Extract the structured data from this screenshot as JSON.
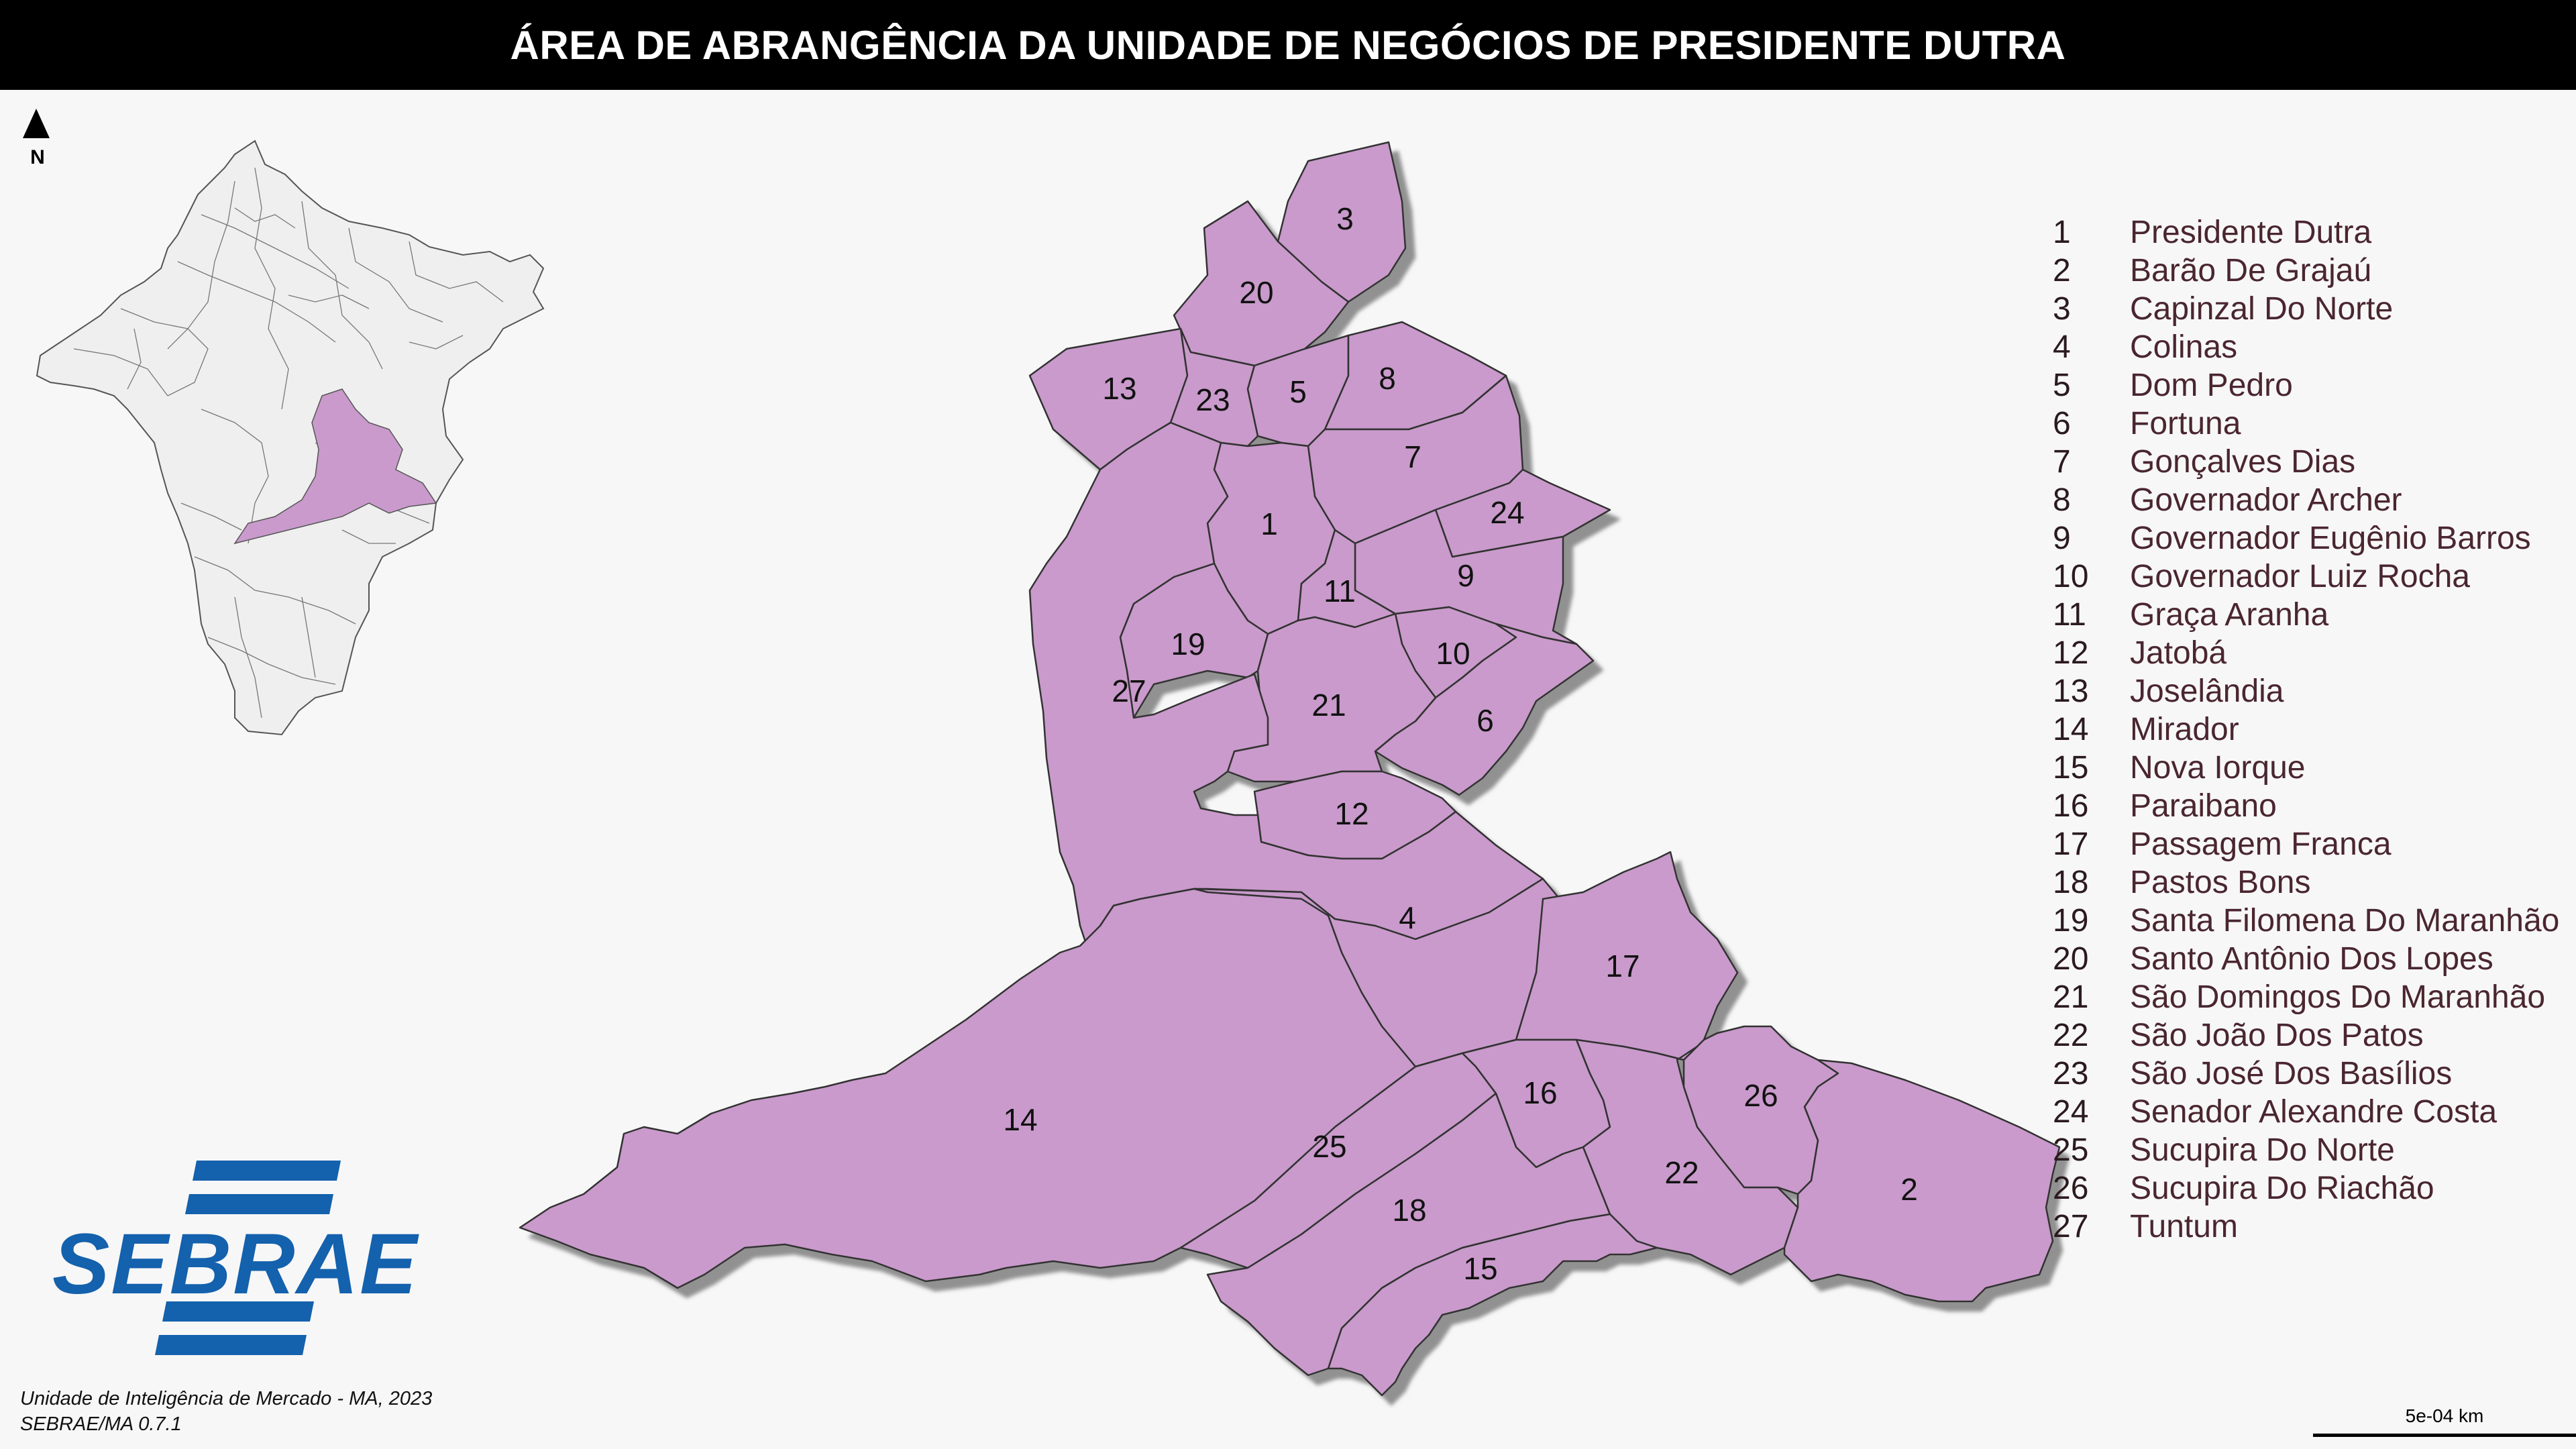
{
  "title": "ÁREA DE ABRANGÊNCIA DA UNIDADE DE NEGÓCIOS DE PRESIDENTE DUTRA",
  "north_label": "N",
  "colors": {
    "highlight": "#c99acb",
    "background": "#f7f7f7",
    "locator_fill": "#efefef",
    "text_legend": "#4a2630",
    "logo_blue": "#1461ad"
  },
  "map_labels": {
    "m1": "1",
    "m2": "2",
    "m3": "3",
    "m4": "4",
    "m5": "5",
    "m6": "6",
    "m7": "7",
    "m8": "8",
    "m9": "9",
    "m10": "10",
    "m11": "11",
    "m12": "12",
    "m13": "13",
    "m14": "14",
    "m15": "15",
    "m16": "16",
    "m17": "17",
    "m18": "18",
    "m19": "19",
    "m20": "20",
    "m21": "21",
    "m22": "22",
    "m23": "23",
    "m24": "24",
    "m25": "25",
    "m26": "26",
    "m27": "27"
  },
  "legend": [
    {
      "num": "1",
      "name": "Presidente Dutra"
    },
    {
      "num": "2",
      "name": "Barão De Grajaú"
    },
    {
      "num": "3",
      "name": "Capinzal Do Norte"
    },
    {
      "num": "4",
      "name": "Colinas"
    },
    {
      "num": "5",
      "name": "Dom Pedro"
    },
    {
      "num": "6",
      "name": "Fortuna"
    },
    {
      "num": "7",
      "name": "Gonçalves Dias"
    },
    {
      "num": "8",
      "name": "Governador Archer"
    },
    {
      "num": "9",
      "name": "Governador Eugênio Barros"
    },
    {
      "num": "10",
      "name": "Governador Luiz Rocha"
    },
    {
      "num": "11",
      "name": "Graça Aranha"
    },
    {
      "num": "12",
      "name": "Jatobá"
    },
    {
      "num": "13",
      "name": "Joselândia"
    },
    {
      "num": "14",
      "name": "Mirador"
    },
    {
      "num": "15",
      "name": "Nova Iorque"
    },
    {
      "num": "16",
      "name": "Paraibano"
    },
    {
      "num": "17",
      "name": "Passagem Franca"
    },
    {
      "num": "18",
      "name": "Pastos Bons"
    },
    {
      "num": "19",
      "name": "Santa Filomena Do Maranhão"
    },
    {
      "num": "20",
      "name": "Santo Antônio Dos Lopes"
    },
    {
      "num": "21",
      "name": "São Domingos Do Maranhão"
    },
    {
      "num": "22",
      "name": "São João Dos Patos"
    },
    {
      "num": "23",
      "name": "São José Dos Basílios"
    },
    {
      "num": "24",
      "name": "Senador Alexandre Costa"
    },
    {
      "num": "25",
      "name": "Sucupira Do Norte"
    },
    {
      "num": "26",
      "name": "Sucupira Do Riachão"
    },
    {
      "num": "27",
      "name": "Tuntum"
    }
  ],
  "logo_text": "SEBRAE",
  "credit": {
    "line1": "Unidade de Inteligência de Mercado - MA, 2023",
    "line2": "SEBRAE/MA 0.7.1"
  },
  "scale": {
    "label": "5e-04 km"
  }
}
